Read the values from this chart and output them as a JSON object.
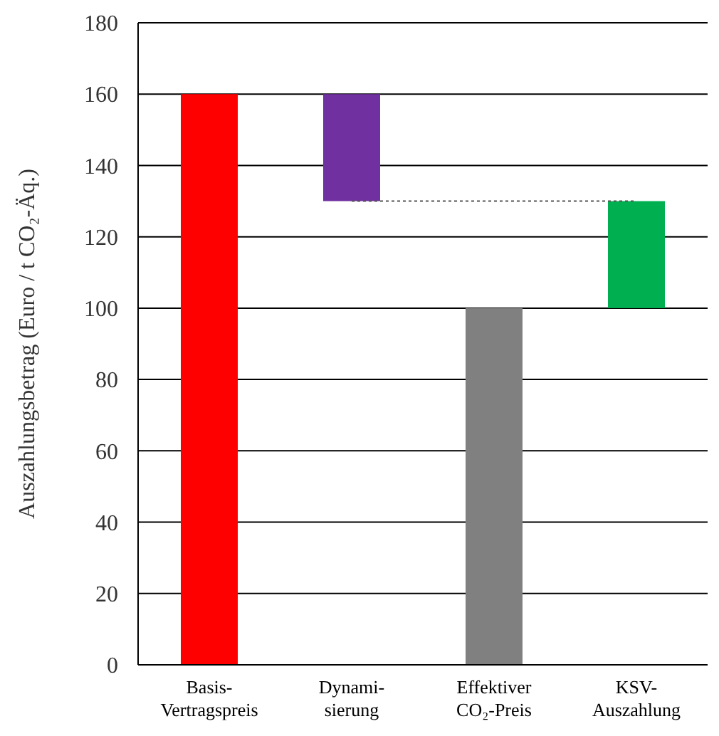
{
  "chart_data": {
    "type": "bar",
    "ylabel": "Auszahlungsbetrag (Euro / t CO₂-Äq.)",
    "categories": [
      "Basis-\nVertragspreis",
      "Dynami-\nsierung",
      "Effektiver\nCO₂-Preis",
      "KSV-\nAuszahlung"
    ],
    "series": [
      {
        "values": [
          160,
          30,
          100,
          30
        ],
        "base": [
          0,
          130,
          0,
          100
        ],
        "colors": [
          "#ff0000",
          "#7030a0",
          "#808080",
          "#00b050"
        ]
      },
      {
        "type": "line",
        "values": [
          null,
          130,
          130,
          130
        ],
        "color": "#555555",
        "line_style": "dotted"
      }
    ],
    "ylim": [
      0,
      180
    ],
    "yticks": [
      0,
      20,
      40,
      60,
      80,
      100,
      120,
      140,
      160,
      180
    ],
    "grid": "y"
  }
}
